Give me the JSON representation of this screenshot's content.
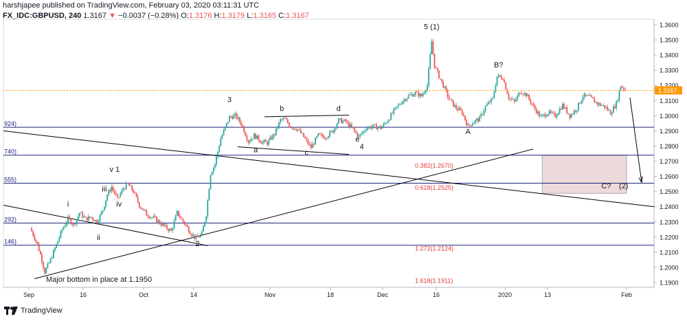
{
  "header": {
    "published_line": "harshjapee published on TradingView.com, February 03, 2020 03:11:31 UTC",
    "symbol": "FX_IDC:GBPUSD, 240",
    "last": "1.3167",
    "change_arrow": "▼",
    "change": "−0.0037 (−0.28%)",
    "o_label": "O:",
    "o_value": "1.3176",
    "h_label": "H:",
    "h_value": "1.3179",
    "l_label": "L:",
    "l_value": "1.3165",
    "c_label": "C:",
    "c_value": "1.3167"
  },
  "footer": {
    "brand": "TradingView",
    "logo_icon": "tradingview-logo-icon"
  },
  "colors": {
    "up": "#26a69a",
    "down": "#ef5350",
    "fib_line": "#1a237e",
    "trend_line": "#000000",
    "price_badge": "#ff9800",
    "box_fill": "#ead3d3"
  },
  "chart_data": {
    "type": "candlestick",
    "ylim": [
      1.19,
      1.36
    ],
    "price_ticks": [
      "1.3600",
      "1.3500",
      "1.3400",
      "1.3300",
      "1.3200",
      "1.3100",
      "1.3000",
      "1.2900",
      "1.2800",
      "1.2700",
      "1.2600",
      "1.2500",
      "1.2400",
      "1.2300",
      "1.2200",
      "1.2100",
      "1.2000",
      "1.1900"
    ],
    "x_ticks": [
      "Sep",
      "16",
      "Oct",
      "14",
      "Nov",
      "18",
      "Dec",
      "16",
      "2020",
      "13",
      "Feb"
    ],
    "current_price": "1.3167",
    "path_points": [
      [
        0,
        1.226
      ],
      [
        5,
        1.215
      ],
      [
        8,
        1.205
      ],
      [
        10,
        1.197
      ],
      [
        14,
        1.205
      ],
      [
        18,
        1.215
      ],
      [
        22,
        1.225
      ],
      [
        26,
        1.232
      ],
      [
        30,
        1.228
      ],
      [
        34,
        1.236
      ],
      [
        38,
        1.232
      ],
      [
        42,
        1.233
      ],
      [
        46,
        1.23
      ],
      [
        50,
        1.238
      ],
      [
        53,
        1.248
      ],
      [
        56,
        1.253
      ],
      [
        60,
        1.245
      ],
      [
        64,
        1.252
      ],
      [
        67,
        1.255
      ],
      [
        71,
        1.25
      ],
      [
        75,
        1.241
      ],
      [
        80,
        1.235
      ],
      [
        86,
        1.232
      ],
      [
        92,
        1.227
      ],
      [
        97,
        1.224
      ],
      [
        101,
        1.236
      ],
      [
        106,
        1.229
      ],
      [
        111,
        1.222
      ],
      [
        114,
        1.219
      ],
      [
        118,
        1.222
      ],
      [
        121,
        1.235
      ],
      [
        124,
        1.262
      ],
      [
        127,
        1.268
      ],
      [
        131,
        1.285
      ],
      [
        134,
        1.292
      ],
      [
        137,
        1.299
      ],
      [
        141,
        1.3
      ],
      [
        145,
        1.295
      ],
      [
        150,
        1.283
      ],
      [
        154,
        1.287
      ],
      [
        159,
        1.283
      ],
      [
        163,
        1.282
      ],
      [
        168,
        1.288
      ],
      [
        172,
        1.297
      ],
      [
        175,
        1.298
      ],
      [
        179,
        1.293
      ],
      [
        184,
        1.291
      ],
      [
        188,
        1.286
      ],
      [
        193,
        1.279
      ],
      [
        198,
        1.287
      ],
      [
        203,
        1.286
      ],
      [
        208,
        1.29
      ],
      [
        212,
        1.297
      ],
      [
        217,
        1.296
      ],
      [
        222,
        1.291
      ],
      [
        226,
        1.286
      ],
      [
        231,
        1.292
      ],
      [
        236,
        1.293
      ],
      [
        241,
        1.292
      ],
      [
        245,
        1.296
      ],
      [
        250,
        1.303
      ],
      [
        255,
        1.309
      ],
      [
        260,
        1.313
      ],
      [
        265,
        1.315
      ],
      [
        269,
        1.313
      ],
      [
        273,
        1.32
      ],
      [
        276,
        1.349
      ],
      [
        278,
        1.333
      ],
      [
        281,
        1.326
      ],
      [
        284,
        1.32
      ],
      [
        288,
        1.311
      ],
      [
        292,
        1.306
      ],
      [
        297,
        1.302
      ],
      [
        301,
        1.293
      ],
      [
        305,
        1.296
      ],
      [
        309,
        1.298
      ],
      [
        313,
        1.306
      ],
      [
        318,
        1.311
      ],
      [
        321,
        1.326
      ],
      [
        325,
        1.325
      ],
      [
        329,
        1.312
      ],
      [
        333,
        1.309
      ],
      [
        337,
        1.316
      ],
      [
        341,
        1.314
      ],
      [
        346,
        1.306
      ],
      [
        351,
        1.299
      ],
      [
        356,
        1.302
      ],
      [
        361,
        1.3
      ],
      [
        366,
        1.307
      ],
      [
        371,
        1.3
      ],
      [
        376,
        1.305
      ],
      [
        380,
        1.313
      ],
      [
        385,
        1.312
      ],
      [
        390,
        1.308
      ],
      [
        395,
        1.306
      ],
      [
        399,
        1.302
      ],
      [
        403,
        1.308
      ],
      [
        406,
        1.32
      ],
      [
        409,
        1.317
      ]
    ],
    "fib_levels": [
      {
        "left_label": "924)",
        "price": 1.2924
      },
      {
        "left_label": "740)",
        "price": 1.274
      },
      {
        "left_label": "555)",
        "price": 1.2555
      },
      {
        "left_label": "292)",
        "price": 1.2292
      },
      {
        "left_label": "146)",
        "price": 1.2146
      }
    ],
    "fib_annotations": [
      {
        "text": "0.382(1.2670)",
        "price": 1.267
      },
      {
        "text": "0.618(1.2525)",
        "price": 1.2525
      },
      {
        "text": "1.272(1.2124)",
        "price": 1.2124
      },
      {
        "text": "1.618(1.1911)",
        "price": 1.1911
      }
    ],
    "wave_labels": [
      {
        "text": "i",
        "i": 26,
        "price": 1.24
      },
      {
        "text": "ii",
        "i": 47,
        "price": 1.218
      },
      {
        "text": "iii",
        "i": 51,
        "price": 1.25
      },
      {
        "text": "v 1",
        "i": 58,
        "price": 1.263
      },
      {
        "text": "iv",
        "i": 61,
        "price": 1.24
      },
      {
        "text": "2",
        "i": 115,
        "price": 1.214
      },
      {
        "text": "3",
        "i": 137,
        "price": 1.309
      },
      {
        "text": "a",
        "i": 155,
        "price": 1.276
      },
      {
        "text": "b",
        "i": 173,
        "price": 1.303
      },
      {
        "text": "c",
        "i": 190,
        "price": 1.274
      },
      {
        "text": "d",
        "i": 212,
        "price": 1.303
      },
      {
        "text": "e",
        "i": 225,
        "price": 1.283
      },
      {
        "text": "4",
        "i": 228,
        "price": 1.278
      },
      {
        "text": "5 (1)",
        "i": 276,
        "price": 1.357
      },
      {
        "text": "A",
        "i": 301,
        "price": 1.288
      },
      {
        "text": "B?",
        "i": 322,
        "price": 1.332
      },
      {
        "text": "C?",
        "i": 396,
        "price": 1.252
      },
      {
        "text": "(2)",
        "i": 408,
        "price": 1.252
      }
    ],
    "annotation": "Major bottom in place at 1.1950",
    "target_box": {
      "i_start": 352,
      "i_end": 410,
      "price_top": 1.274,
      "price_bottom": 1.2488
    }
  }
}
